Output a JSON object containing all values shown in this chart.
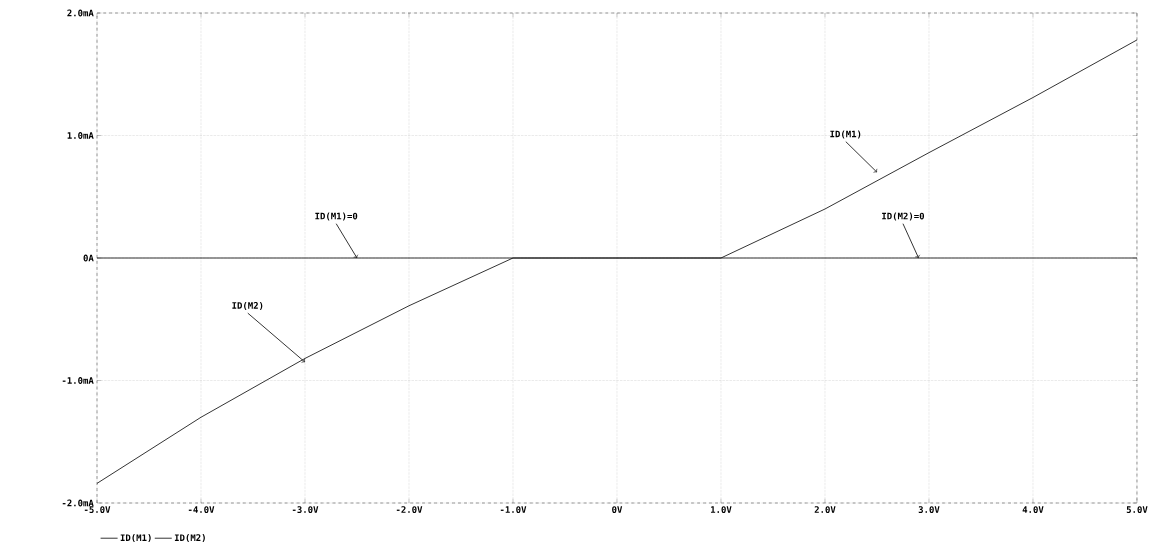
{
  "chart_data": {
    "type": "line",
    "series": [
      {
        "name": "ID(M1)",
        "color": "#000000",
        "x": [
          -5,
          1,
          2,
          3,
          4,
          5
        ],
        "values": [
          0,
          0,
          0.4,
          0.86,
          1.31,
          1.78
        ]
      },
      {
        "name": "ID(M2)",
        "color": "#000000",
        "x": [
          -5,
          -4,
          -3,
          -2,
          -1,
          5
        ],
        "values": [
          -1.84,
          -1.3,
          -0.82,
          -0.39,
          0,
          0
        ]
      }
    ],
    "xlim": [
      -5,
      5
    ],
    "xticks": [
      {
        "value": -5,
        "label": "-5.0V"
      },
      {
        "value": -4,
        "label": "-4.0V"
      },
      {
        "value": -3,
        "label": "-3.0V"
      },
      {
        "value": -2,
        "label": "-2.0V"
      },
      {
        "value": -1,
        "label": "-1.0V"
      },
      {
        "value": 0,
        "label": "0V"
      },
      {
        "value": 1,
        "label": "1.0V"
      },
      {
        "value": 2,
        "label": "2.0V"
      },
      {
        "value": 3,
        "label": "3.0V"
      },
      {
        "value": 4,
        "label": "4.0V"
      },
      {
        "value": 5,
        "label": "5.0V"
      }
    ],
    "ylim": [
      -2,
      2
    ],
    "yticks": [
      {
        "value": -2,
        "label": "-2.0mA"
      },
      {
        "value": -1,
        "label": "-1.0mA"
      },
      {
        "value": 0,
        "label": "0A"
      },
      {
        "value": 1,
        "label": "1.0mA"
      },
      {
        "value": 2,
        "label": "2.0mA"
      }
    ],
    "grid": true,
    "legend": "bottom left",
    "annotations": [
      {
        "text": "ID(M1)",
        "x": 2.5,
        "y": 0.7
      },
      {
        "text": "ID(M1)=0",
        "x": -2.5,
        "y": 0
      },
      {
        "text": "ID(M2)=0",
        "x": 2.9,
        "y": 0
      },
      {
        "text": "ID(M2)",
        "x": -3,
        "y": -0.85
      }
    ]
  }
}
